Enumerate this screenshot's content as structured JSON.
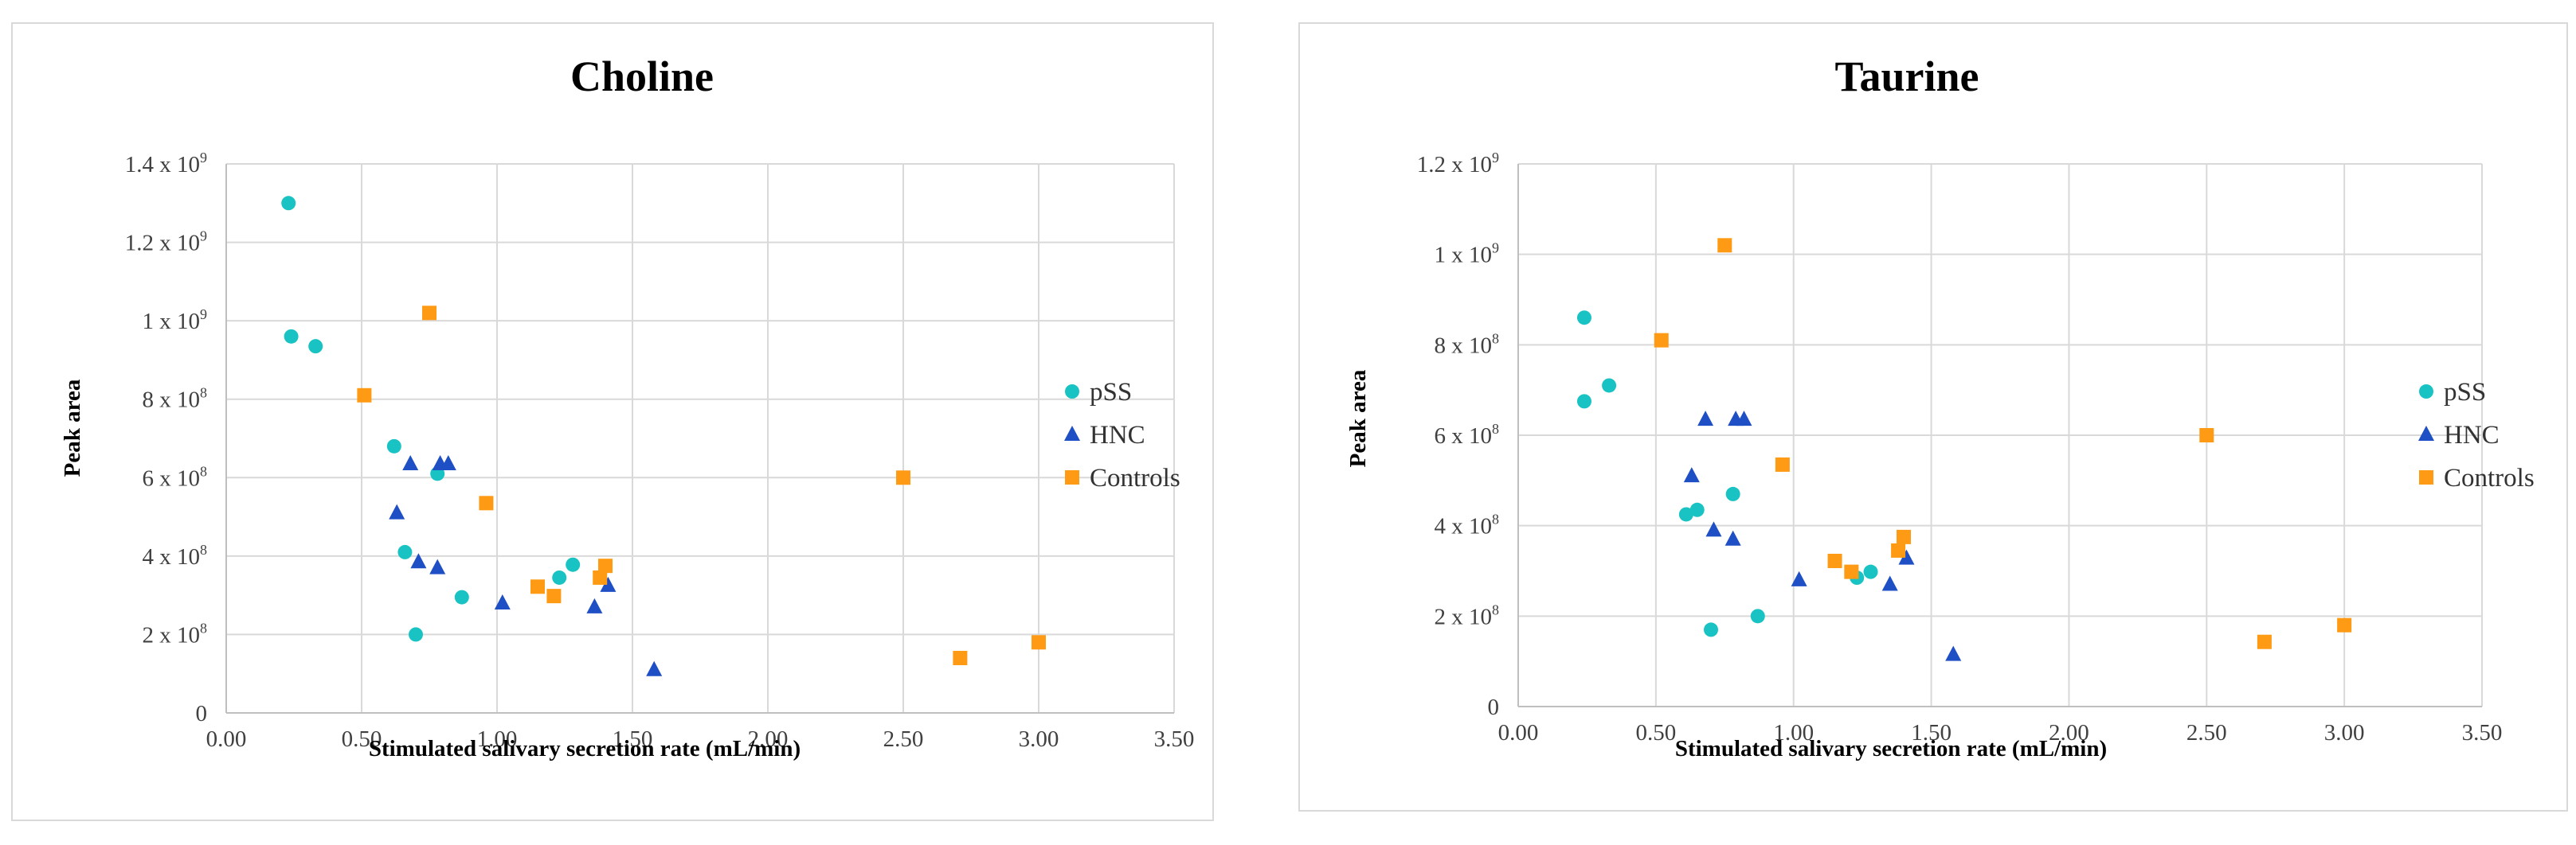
{
  "colors": {
    "pSS": "#19c3c3",
    "HNC": "#1f4fc4",
    "Controls": "#ff9a14"
  },
  "chart_data": [
    {
      "type": "scatter",
      "title": "Choline",
      "xlabel": "Stimulated salivary secretion rate (mL/min)",
      "ylabel": "Peak area",
      "xlim": [
        0,
        3.5
      ],
      "ylim": [
        0,
        1400000000
      ],
      "xticks": [
        "0.00",
        "0.50",
        "1.00",
        "1.50",
        "2.00",
        "2.50",
        "3.00",
        "3.50"
      ],
      "yticks": [
        {
          "base": "0",
          "exp": ""
        },
        {
          "base": "2 x 10",
          "exp": "8"
        },
        {
          "base": "4 x 10",
          "exp": "8"
        },
        {
          "base": "6 x 10",
          "exp": "8"
        },
        {
          "base": "8 x 10",
          "exp": "8"
        },
        {
          "base": "1 x 10",
          "exp": "9"
        },
        {
          "base": "1.2 x 10",
          "exp": "9"
        },
        {
          "base": "1.4 x 10",
          "exp": "9"
        }
      ],
      "legend_position": "right",
      "series": [
        {
          "name": "pSS",
          "marker": "circle",
          "points": [
            [
              0.23,
              1300000000
            ],
            [
              0.24,
              960000000
            ],
            [
              0.33,
              935000000
            ],
            [
              0.62,
              680000000
            ],
            [
              0.66,
              410000000
            ],
            [
              0.7,
              200000000
            ],
            [
              0.78,
              610000000
            ],
            [
              0.87,
              295000000
            ],
            [
              1.23,
              345000000
            ],
            [
              1.28,
              378000000
            ]
          ]
        },
        {
          "name": "HNC",
          "marker": "triangle",
          "points": [
            [
              0.63,
              510000000
            ],
            [
              0.68,
              635000000
            ],
            [
              0.71,
              385000000
            ],
            [
              0.78,
              370000000
            ],
            [
              0.79,
              635000000
            ],
            [
              0.82,
              635000000
            ],
            [
              1.02,
              280000000
            ],
            [
              1.36,
              270000000
            ],
            [
              1.41,
              325000000
            ],
            [
              1.58,
              110000000
            ]
          ]
        },
        {
          "name": "Controls",
          "marker": "square",
          "points": [
            [
              0.51,
              810000000
            ],
            [
              0.75,
              1020000000
            ],
            [
              0.96,
              535000000
            ],
            [
              1.15,
              322000000
            ],
            [
              1.21,
              298000000
            ],
            [
              1.38,
              345000000
            ],
            [
              1.4,
              375000000
            ],
            [
              2.5,
              600000000
            ],
            [
              2.71,
              140000000
            ],
            [
              3.0,
              180000000
            ]
          ]
        }
      ]
    },
    {
      "type": "scatter",
      "title": "Taurine",
      "xlabel": "Stimulated salivary secretion rate (mL/min)",
      "ylabel": "Peak area",
      "xlim": [
        0,
        3.5
      ],
      "ylim": [
        0,
        1200000000
      ],
      "xticks": [
        "0.00",
        "0.50",
        "1.00",
        "1.50",
        "2.00",
        "2.50",
        "3.00",
        "3.50"
      ],
      "yticks": [
        {
          "base": "0",
          "exp": ""
        },
        {
          "base": "2 x 10",
          "exp": "8"
        },
        {
          "base": "4 x 10",
          "exp": "8"
        },
        {
          "base": "6 x 10",
          "exp": "8"
        },
        {
          "base": "8 x 10",
          "exp": "8"
        },
        {
          "base": "1 x 10",
          "exp": "9"
        },
        {
          "base": "1.2 x 10",
          "exp": "9"
        }
      ],
      "legend_position": "right",
      "series": [
        {
          "name": "pSS",
          "marker": "circle",
          "points": [
            [
              0.24,
              860000000
            ],
            [
              0.24,
              675000000
            ],
            [
              0.33,
              710000000
            ],
            [
              0.61,
              425000000
            ],
            [
              0.65,
              435000000
            ],
            [
              0.7,
              170000000
            ],
            [
              0.78,
              470000000
            ],
            [
              0.87,
              200000000
            ],
            [
              1.23,
              285000000
            ],
            [
              1.28,
              298000000
            ]
          ]
        },
        {
          "name": "HNC",
          "marker": "triangle",
          "points": [
            [
              0.63,
              510000000
            ],
            [
              0.68,
              635000000
            ],
            [
              0.71,
              390000000
            ],
            [
              0.78,
              370000000
            ],
            [
              0.79,
              635000000
            ],
            [
              0.82,
              635000000
            ],
            [
              1.02,
              280000000
            ],
            [
              1.35,
              270000000
            ],
            [
              1.41,
              328000000
            ],
            [
              1.58,
              115000000
            ]
          ]
        },
        {
          "name": "Controls",
          "marker": "square",
          "points": [
            [
              0.52,
              810000000
            ],
            [
              0.75,
              1020000000
            ],
            [
              0.96,
              535000000
            ],
            [
              1.15,
              322000000
            ],
            [
              1.21,
              298000000
            ],
            [
              1.38,
              345000000
            ],
            [
              1.4,
              375000000
            ],
            [
              2.5,
              600000000
            ],
            [
              2.71,
              143000000
            ],
            [
              3.0,
              180000000
            ]
          ]
        }
      ]
    }
  ]
}
